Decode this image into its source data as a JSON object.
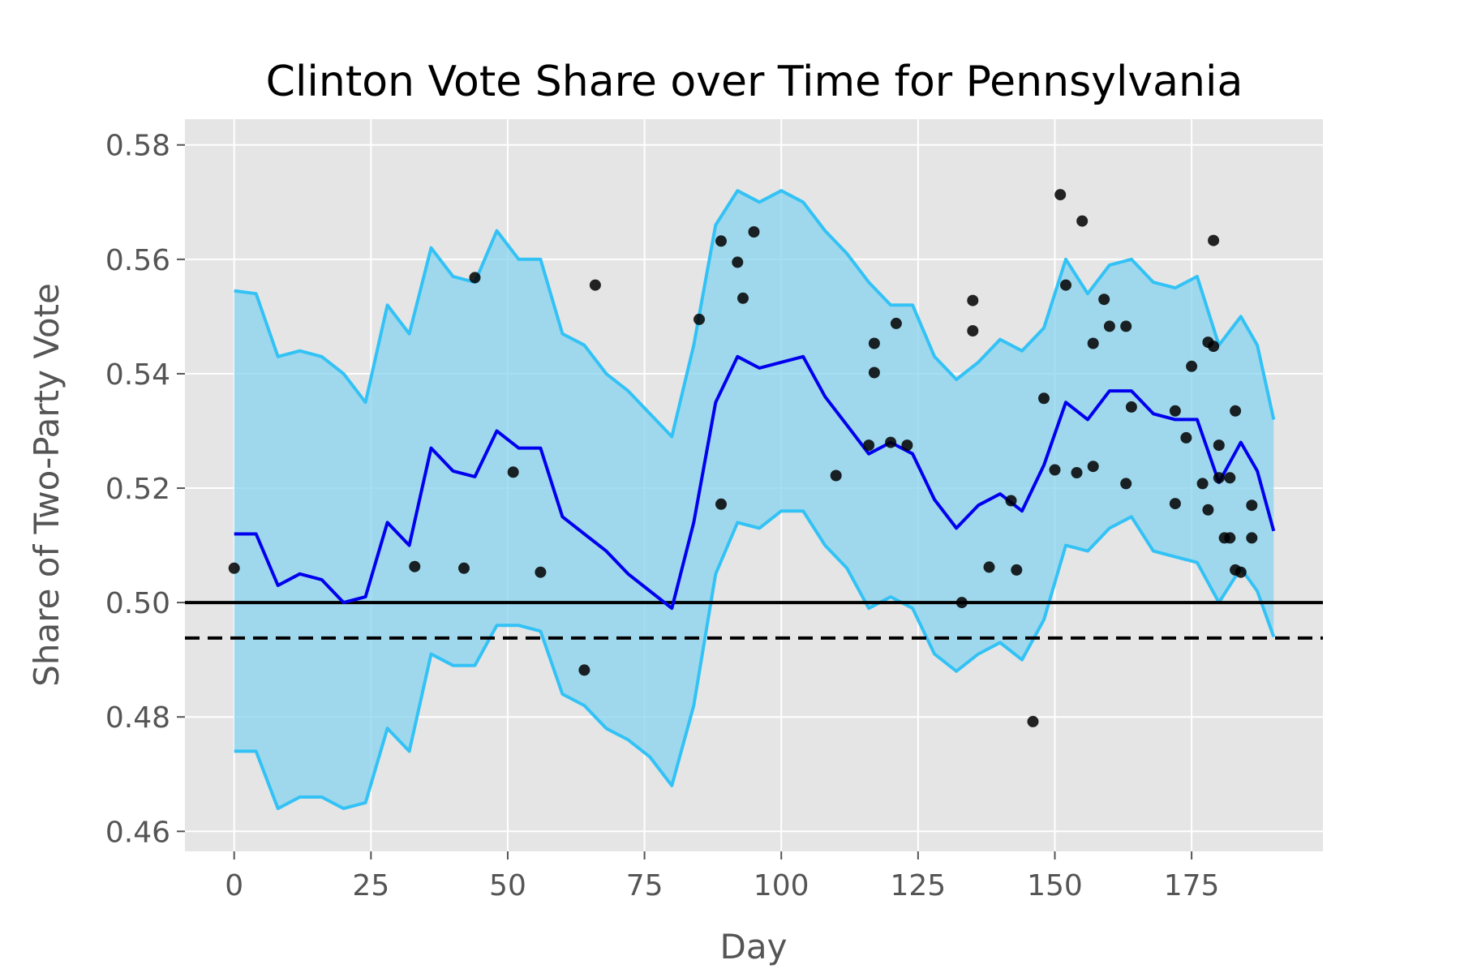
{
  "chart_data": {
    "type": "line",
    "title": "Clinton Vote Share over Time for Pennsylvania",
    "xlabel": "Day",
    "ylabel": "Share of Two-Party Vote",
    "xlim": [
      -9,
      199
    ],
    "ylim": [
      0.4565,
      0.5845
    ],
    "xticks": [
      0,
      25,
      50,
      75,
      100,
      125,
      150,
      175
    ],
    "yticks": [
      0.46,
      0.48,
      0.5,
      0.52,
      0.54,
      0.56,
      0.58
    ],
    "ytick_labels": [
      "0.46",
      "0.48",
      "0.50",
      "0.52",
      "0.54",
      "0.56",
      "0.58"
    ],
    "grid": true,
    "background": "#e5e5e5",
    "colors": {
      "band_fill": "#87d3ee",
      "band_edge": "#33c2f5",
      "mean_line": "#0000ee",
      "reference_line": "#000000",
      "poll_dot": "#000000"
    },
    "reference_lines": [
      {
        "y": 0.5,
        "style": "solid"
      },
      {
        "y": 0.4938,
        "style": "dashed"
      }
    ],
    "x": [
      0,
      4,
      8,
      12,
      16,
      20,
      24,
      28,
      32,
      36,
      40,
      44,
      48,
      52,
      56,
      60,
      64,
      68,
      72,
      76,
      80,
      84,
      88,
      92,
      96,
      100,
      104,
      108,
      112,
      116,
      120,
      124,
      128,
      132,
      136,
      140,
      144,
      148,
      152,
      156,
      160,
      164,
      168,
      172,
      176,
      180,
      184,
      187,
      190
    ],
    "series": [
      {
        "role": "mean",
        "values": [
          0.512,
          0.512,
          0.503,
          0.505,
          0.504,
          0.5,
          0.501,
          0.514,
          0.51,
          0.527,
          0.523,
          0.522,
          0.53,
          0.527,
          0.527,
          0.515,
          0.512,
          0.509,
          0.505,
          0.502,
          0.499,
          0.514,
          0.535,
          0.543,
          0.541,
          0.542,
          0.543,
          0.536,
          0.531,
          0.526,
          0.528,
          0.526,
          0.518,
          0.513,
          0.517,
          0.519,
          0.516,
          0.524,
          0.535,
          0.532,
          0.537,
          0.537,
          0.533,
          0.532,
          0.532,
          0.521,
          0.528,
          0.523,
          0.5125
        ]
      },
      {
        "role": "upper",
        "values": [
          0.5545,
          0.554,
          0.543,
          0.544,
          0.543,
          0.54,
          0.535,
          0.552,
          0.547,
          0.562,
          0.557,
          0.556,
          0.565,
          0.56,
          0.56,
          0.547,
          0.545,
          0.54,
          0.537,
          0.533,
          0.529,
          0.545,
          0.566,
          0.572,
          0.57,
          0.572,
          0.57,
          0.565,
          0.561,
          0.556,
          0.552,
          0.552,
          0.543,
          0.539,
          0.542,
          0.546,
          0.544,
          0.548,
          0.56,
          0.554,
          0.559,
          0.56,
          0.556,
          0.555,
          0.557,
          0.545,
          0.55,
          0.545,
          0.532
        ]
      },
      {
        "role": "lower",
        "values": [
          0.474,
          0.474,
          0.464,
          0.466,
          0.466,
          0.464,
          0.465,
          0.478,
          0.474,
          0.491,
          0.489,
          0.489,
          0.496,
          0.496,
          0.495,
          0.484,
          0.482,
          0.478,
          0.476,
          0.473,
          0.468,
          0.482,
          0.505,
          0.514,
          0.513,
          0.516,
          0.516,
          0.51,
          0.506,
          0.499,
          0.501,
          0.499,
          0.491,
          0.488,
          0.491,
          0.493,
          0.49,
          0.497,
          0.51,
          0.509,
          0.513,
          0.515,
          0.509,
          0.508,
          0.507,
          0.5,
          0.506,
          0.502,
          0.494
        ]
      }
    ],
    "polls": [
      {
        "x": 0,
        "y": 0.506
      },
      {
        "x": 33,
        "y": 0.5063
      },
      {
        "x": 42,
        "y": 0.506
      },
      {
        "x": 44,
        "y": 0.5568
      },
      {
        "x": 51,
        "y": 0.5228
      },
      {
        "x": 56,
        "y": 0.5053
      },
      {
        "x": 64,
        "y": 0.4882
      },
      {
        "x": 66,
        "y": 0.5555
      },
      {
        "x": 85,
        "y": 0.5495
      },
      {
        "x": 89,
        "y": 0.5172
      },
      {
        "x": 89,
        "y": 0.5632
      },
      {
        "x": 92,
        "y": 0.5595
      },
      {
        "x": 93,
        "y": 0.5532
      },
      {
        "x": 95,
        "y": 0.5648
      },
      {
        "x": 110,
        "y": 0.5222
      },
      {
        "x": 116,
        "y": 0.5275
      },
      {
        "x": 117,
        "y": 0.5453
      },
      {
        "x": 117,
        "y": 0.5402
      },
      {
        "x": 120,
        "y": 0.528
      },
      {
        "x": 121,
        "y": 0.5488
      },
      {
        "x": 123,
        "y": 0.5275
      },
      {
        "x": 133,
        "y": 0.5
      },
      {
        "x": 135,
        "y": 0.5528
      },
      {
        "x": 135,
        "y": 0.5475
      },
      {
        "x": 138,
        "y": 0.5062
      },
      {
        "x": 142,
        "y": 0.5178
      },
      {
        "x": 143,
        "y": 0.5057
      },
      {
        "x": 146,
        "y": 0.4792
      },
      {
        "x": 148,
        "y": 0.5357
      },
      {
        "x": 150,
        "y": 0.5232
      },
      {
        "x": 151,
        "y": 0.5713
      },
      {
        "x": 152,
        "y": 0.5555
      },
      {
        "x": 154,
        "y": 0.5227
      },
      {
        "x": 155,
        "y": 0.5667
      },
      {
        "x": 157,
        "y": 0.5453
      },
      {
        "x": 157,
        "y": 0.5238
      },
      {
        "x": 159,
        "y": 0.553
      },
      {
        "x": 160,
        "y": 0.5483
      },
      {
        "x": 163,
        "y": 0.5208
      },
      {
        "x": 163,
        "y": 0.5483
      },
      {
        "x": 164,
        "y": 0.5342
      },
      {
        "x": 172,
        "y": 0.5173
      },
      {
        "x": 172,
        "y": 0.5335
      },
      {
        "x": 174,
        "y": 0.5288
      },
      {
        "x": 175,
        "y": 0.5413
      },
      {
        "x": 177,
        "y": 0.5208
      },
      {
        "x": 178,
        "y": 0.5162
      },
      {
        "x": 178,
        "y": 0.5455
      },
      {
        "x": 179,
        "y": 0.5633
      },
      {
        "x": 179,
        "y": 0.5448
      },
      {
        "x": 180,
        "y": 0.5275
      },
      {
        "x": 180,
        "y": 0.5218
      },
      {
        "x": 181,
        "y": 0.5113
      },
      {
        "x": 182,
        "y": 0.5113
      },
      {
        "x": 182,
        "y": 0.5218
      },
      {
        "x": 183,
        "y": 0.5057
      },
      {
        "x": 183,
        "y": 0.5335
      },
      {
        "x": 184,
        "y": 0.5053
      },
      {
        "x": 186,
        "y": 0.5113
      },
      {
        "x": 186,
        "y": 0.517
      }
    ]
  }
}
